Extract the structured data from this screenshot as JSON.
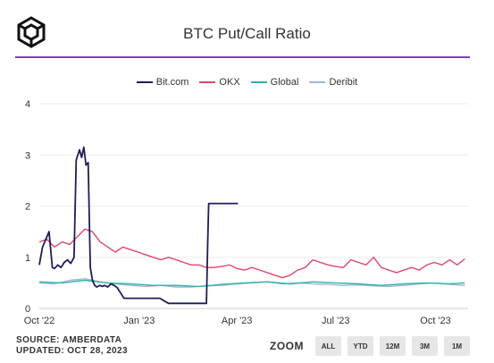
{
  "title": "BTC Put/Call Ratio",
  "footer": {
    "source": "SOURCE: AMBERDATA",
    "updated": "UPDATED: OCT 28, 2023"
  },
  "zoom": {
    "label": "ZOOM",
    "buttons": [
      "ALL",
      "YTD",
      "12M",
      "3M",
      "1M"
    ]
  },
  "colors": {
    "accent": "#7b3fbf",
    "bitcom": "#1f1d57",
    "okx": "#e0466b",
    "global": "#2fb5a3",
    "deribit": "#a3b3de"
  },
  "chart_data": {
    "type": "line",
    "title": "BTC Put/Call Ratio",
    "xlabel": "",
    "ylabel": "",
    "ylim": [
      0,
      4
    ],
    "yticks": [
      0,
      1,
      2,
      3,
      4
    ],
    "xlim": [
      "2022-10-01",
      "2023-10-31"
    ],
    "xticks": [
      {
        "date": "2022-10-01",
        "label": "Oct '22"
      },
      {
        "date": "2023-01-01",
        "label": "Jan '23"
      },
      {
        "date": "2023-04-01",
        "label": "Apr '23"
      },
      {
        "date": "2023-07-01",
        "label": "Jul '23"
      },
      {
        "date": "2023-10-01",
        "label": "Oct '23"
      }
    ],
    "grid": true,
    "legend_position": "top",
    "series": [
      {
        "name": "Bit.com",
        "color": "#1f1d57",
        "x": [
          "2022-10-01",
          "2022-10-04",
          "2022-10-07",
          "2022-10-10",
          "2022-10-13",
          "2022-10-15",
          "2022-10-18",
          "2022-10-21",
          "2022-10-24",
          "2022-10-27",
          "2022-10-30",
          "2022-11-02",
          "2022-11-04",
          "2022-11-07",
          "2022-11-09",
          "2022-11-11",
          "2022-11-13",
          "2022-11-15",
          "2022-11-17",
          "2022-11-19",
          "2022-11-21",
          "2022-11-23",
          "2022-11-26",
          "2022-11-28",
          "2022-11-30",
          "2022-12-03",
          "2022-12-06",
          "2022-12-09",
          "2022-12-12",
          "2022-12-15",
          "2022-12-18",
          "2022-12-21",
          "2022-12-24",
          "2022-12-27",
          "2022-12-30",
          "2023-01-05",
          "2023-01-12",
          "2023-01-20",
          "2023-01-28",
          "2023-02-05",
          "2023-02-14",
          "2023-02-23",
          "2023-03-02",
          "2023-03-04",
          "2023-03-05",
          "2023-03-06",
          "2023-03-15",
          "2023-03-25",
          "2023-04-02"
        ],
        "y": [
          0.85,
          1.2,
          1.35,
          1.5,
          0.8,
          0.78,
          0.85,
          0.8,
          0.9,
          0.95,
          0.88,
          1.0,
          2.9,
          3.1,
          2.95,
          3.15,
          2.8,
          2.85,
          0.8,
          0.55,
          0.45,
          0.42,
          0.45,
          0.43,
          0.45,
          0.42,
          0.48,
          0.45,
          0.4,
          0.3,
          0.2,
          0.2,
          0.2,
          0.2,
          0.2,
          0.2,
          0.2,
          0.2,
          0.1,
          0.1,
          0.1,
          0.1,
          0.1,
          0.1,
          1.2,
          2.05,
          2.05,
          2.05,
          2.05
        ]
      },
      {
        "name": "OKX",
        "color": "#e0466b",
        "x": [
          "2022-10-01",
          "2022-10-08",
          "2022-10-15",
          "2022-10-22",
          "2022-10-29",
          "2022-11-05",
          "2022-11-12",
          "2022-11-19",
          "2022-11-26",
          "2022-12-03",
          "2022-12-10",
          "2022-12-17",
          "2022-12-24",
          "2022-12-31",
          "2023-01-07",
          "2023-01-14",
          "2023-01-21",
          "2023-01-28",
          "2023-02-04",
          "2023-02-11",
          "2023-02-18",
          "2023-02-25",
          "2023-03-04",
          "2023-03-11",
          "2023-03-18",
          "2023-03-25",
          "2023-04-01",
          "2023-04-08",
          "2023-04-15",
          "2023-04-22",
          "2023-04-29",
          "2023-05-06",
          "2023-05-13",
          "2023-05-20",
          "2023-05-27",
          "2023-06-03",
          "2023-06-10",
          "2023-06-17",
          "2023-06-24",
          "2023-07-01",
          "2023-07-08",
          "2023-07-15",
          "2023-07-22",
          "2023-07-29",
          "2023-08-05",
          "2023-08-12",
          "2023-08-19",
          "2023-08-26",
          "2023-09-02",
          "2023-09-09",
          "2023-09-16",
          "2023-09-23",
          "2023-09-30",
          "2023-10-07",
          "2023-10-14",
          "2023-10-21",
          "2023-10-28"
        ],
        "y": [
          1.3,
          1.35,
          1.2,
          1.3,
          1.25,
          1.4,
          1.55,
          1.5,
          1.3,
          1.2,
          1.1,
          1.2,
          1.15,
          1.1,
          1.05,
          1.0,
          0.95,
          1.0,
          0.95,
          0.9,
          0.85,
          0.85,
          0.8,
          0.8,
          0.82,
          0.85,
          0.78,
          0.75,
          0.8,
          0.75,
          0.7,
          0.65,
          0.6,
          0.65,
          0.75,
          0.8,
          0.95,
          0.9,
          0.85,
          0.82,
          0.8,
          0.95,
          0.9,
          0.85,
          1.0,
          0.8,
          0.75,
          0.7,
          0.75,
          0.8,
          0.75,
          0.85,
          0.9,
          0.85,
          0.95,
          0.85,
          0.97
        ]
      },
      {
        "name": "Global",
        "color": "#2fb5a3",
        "x": [
          "2022-10-01",
          "2022-10-22",
          "2022-11-12",
          "2022-12-03",
          "2022-12-24",
          "2023-01-14",
          "2023-02-04",
          "2023-02-25",
          "2023-03-18",
          "2023-04-08",
          "2023-04-29",
          "2023-05-20",
          "2023-06-10",
          "2023-07-01",
          "2023-07-22",
          "2023-08-12",
          "2023-09-02",
          "2023-09-23",
          "2023-10-14",
          "2023-10-28"
        ],
        "y": [
          0.52,
          0.5,
          0.55,
          0.5,
          0.48,
          0.45,
          0.45,
          0.43,
          0.47,
          0.5,
          0.52,
          0.48,
          0.52,
          0.5,
          0.48,
          0.45,
          0.48,
          0.5,
          0.48,
          0.5
        ]
      },
      {
        "name": "Deribit",
        "color": "#a3b3de",
        "x": [
          "2022-10-01",
          "2022-10-15",
          "2022-10-29",
          "2022-11-12",
          "2022-11-26",
          "2022-12-10",
          "2022-12-24",
          "2023-01-07",
          "2023-01-21",
          "2023-02-04",
          "2023-02-18",
          "2023-03-04",
          "2023-03-18",
          "2023-04-01",
          "2023-04-15",
          "2023-04-29",
          "2023-05-13",
          "2023-05-27",
          "2023-06-10",
          "2023-06-24",
          "2023-07-08",
          "2023-07-22",
          "2023-08-05",
          "2023-08-19",
          "2023-09-02",
          "2023-09-16",
          "2023-09-30",
          "2023-10-14",
          "2023-10-28"
        ],
        "y": [
          0.5,
          0.48,
          0.55,
          0.58,
          0.52,
          0.48,
          0.45,
          0.43,
          0.45,
          0.42,
          0.42,
          0.44,
          0.45,
          0.48,
          0.5,
          0.52,
          0.48,
          0.5,
          0.48,
          0.47,
          0.45,
          0.46,
          0.44,
          0.43,
          0.45,
          0.48,
          0.5,
          0.47,
          0.45
        ]
      }
    ]
  }
}
